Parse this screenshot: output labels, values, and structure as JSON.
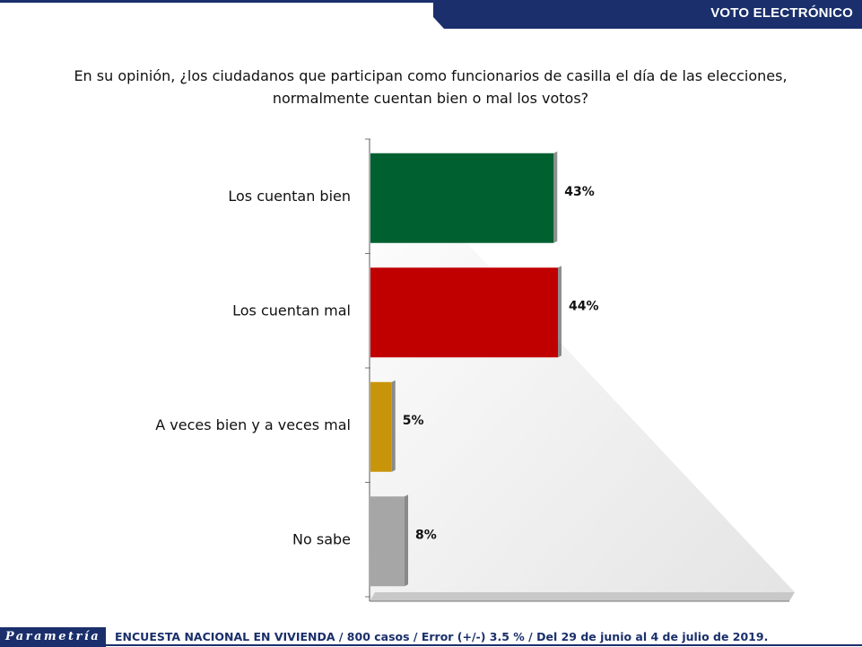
{
  "header": {
    "section_title": "VOTO ELECTRÓNICO"
  },
  "question": {
    "line1": "En su opinión, ¿los ciudadanos que participan como funcionarios de casilla el día de las elecciones,",
    "line2": "normalmente cuentan bien o mal los votos?"
  },
  "chart_data": {
    "type": "bar",
    "orientation": "horizontal",
    "title": "",
    "xlabel": "",
    "ylabel": "",
    "xlim": [
      0,
      100
    ],
    "grid": false,
    "categories": [
      "Los cuentan bien",
      "Los cuentan mal",
      "A veces bien y a veces mal",
      "No sabe"
    ],
    "values": [
      43,
      44,
      5,
      8
    ],
    "value_labels": [
      "43%",
      "44%",
      "5%",
      "8%"
    ],
    "colors": [
      "#006030",
      "#c00000",
      "#c8950a",
      "#a6a6a6"
    ]
  },
  "footer": {
    "logo_text": "Parametría",
    "source_note": "ENCUESTA NACIONAL EN VIVIENDA / 800 casos / Error (+/-) 3.5 % / Del 29 de junio al 4 de julio de 2019."
  },
  "icons": [
    "parametria-logo"
  ]
}
